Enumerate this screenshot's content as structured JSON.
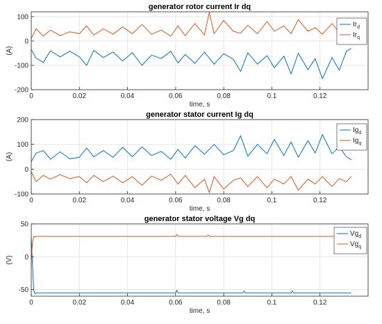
{
  "colors": {
    "d": "#0072BD",
    "q": "#D95319",
    "grid": "#e6e6e6",
    "axis": "#262626"
  },
  "chart_data": [
    {
      "type": "line",
      "title": "generator rotor current Ir dq",
      "xlabel": "time, s",
      "ylabel": "(A)",
      "xlim": [
        0,
        0.14
      ],
      "ylim": [
        -200,
        120
      ],
      "xticks": [
        0,
        0.02,
        0.04,
        0.06,
        0.08,
        0.1,
        0.12
      ],
      "xtick_labels": [
        "0",
        "0.02",
        "0.04",
        "0.06",
        "0.08",
        "0.1",
        "0.12"
      ],
      "yticks": [
        -200,
        -100,
        0,
        100
      ],
      "ytick_labels": [
        "-200",
        "-100",
        "0",
        "100"
      ],
      "grid": true,
      "legend_position": "top-right",
      "series": [
        {
          "name": "Ir",
          "sub": "d",
          "color_key": "d",
          "x": [
            0,
            0.002,
            0.005,
            0.008,
            0.012,
            0.016,
            0.02,
            0.023,
            0.026,
            0.03,
            0.034,
            0.038,
            0.042,
            0.046,
            0.05,
            0.054,
            0.058,
            0.061,
            0.064,
            0.068,
            0.072,
            0.076,
            0.08,
            0.084,
            0.087,
            0.09,
            0.094,
            0.098,
            0.101,
            0.105,
            0.108,
            0.111,
            0.115,
            0.118,
            0.121,
            0.125,
            0.128,
            0.131,
            0.133
          ],
          "y": [
            -35,
            -70,
            -88,
            -40,
            -65,
            -42,
            -65,
            -100,
            -38,
            -68,
            -45,
            -82,
            -48,
            -100,
            -58,
            -72,
            -42,
            -90,
            -55,
            -92,
            -45,
            -95,
            -52,
            -75,
            -125,
            -48,
            -95,
            -60,
            -110,
            -62,
            -135,
            -50,
            -118,
            -72,
            -155,
            -68,
            -120,
            -42,
            -30
          ]
        },
        {
          "name": "Ir",
          "sub": "q",
          "color_key": "q",
          "x": [
            0,
            0.002,
            0.005,
            0.008,
            0.012,
            0.016,
            0.02,
            0.023,
            0.026,
            0.03,
            0.034,
            0.038,
            0.042,
            0.046,
            0.05,
            0.054,
            0.058,
            0.061,
            0.064,
            0.068,
            0.072,
            0.074,
            0.076,
            0.08,
            0.084,
            0.087,
            0.09,
            0.094,
            0.098,
            0.101,
            0.105,
            0.108,
            0.111,
            0.115,
            0.118,
            0.121,
            0.125,
            0.128,
            0.131,
            0.133
          ],
          "y": [
            10,
            50,
            20,
            45,
            22,
            38,
            30,
            62,
            25,
            50,
            28,
            58,
            30,
            68,
            28,
            45,
            20,
            62,
            22,
            72,
            25,
            118,
            30,
            85,
            40,
            32,
            65,
            30,
            80,
            40,
            62,
            30,
            88,
            40,
            55,
            28,
            72,
            35,
            50,
            40
          ]
        }
      ]
    },
    {
      "type": "line",
      "title": "generator stator current Ig dq",
      "xlabel": "time, s",
      "ylabel": "(A)",
      "xlim": [
        0,
        0.14
      ],
      "ylim": [
        -100,
        200
      ],
      "xticks": [
        0,
        0.02,
        0.04,
        0.06,
        0.08,
        0.1,
        0.12
      ],
      "xtick_labels": [
        "0",
        "0.02",
        "0.04",
        "0.06",
        "0.08",
        "0.1",
        "0.12"
      ],
      "yticks": [
        -100,
        0,
        100,
        200
      ],
      "ytick_labels": [
        "-100",
        "0",
        "100",
        "200"
      ],
      "grid": true,
      "legend_position": "top-right",
      "series": [
        {
          "name": "Ig",
          "sub": "d",
          "color_key": "d",
          "x": [
            0,
            0.002,
            0.005,
            0.008,
            0.012,
            0.016,
            0.02,
            0.023,
            0.026,
            0.03,
            0.034,
            0.038,
            0.042,
            0.046,
            0.05,
            0.054,
            0.058,
            0.061,
            0.064,
            0.068,
            0.072,
            0.076,
            0.08,
            0.084,
            0.087,
            0.09,
            0.094,
            0.098,
            0.101,
            0.105,
            0.108,
            0.111,
            0.115,
            0.118,
            0.121,
            0.125,
            0.128,
            0.131,
            0.133
          ],
          "y": [
            30,
            65,
            75,
            40,
            70,
            42,
            48,
            85,
            50,
            75,
            48,
            88,
            50,
            90,
            55,
            72,
            40,
            80,
            45,
            95,
            60,
            100,
            58,
            75,
            135,
            52,
            100,
            62,
            120,
            55,
            110,
            48,
            115,
            65,
            140,
            62,
            90,
            50,
            38
          ]
        },
        {
          "name": "Ig",
          "sub": "q",
          "color_key": "q",
          "x": [
            0,
            0.002,
            0.005,
            0.008,
            0.012,
            0.016,
            0.02,
            0.023,
            0.026,
            0.03,
            0.034,
            0.038,
            0.042,
            0.046,
            0.05,
            0.054,
            0.058,
            0.061,
            0.064,
            0.068,
            0.072,
            0.074,
            0.076,
            0.08,
            0.084,
            0.087,
            0.09,
            0.094,
            0.098,
            0.101,
            0.105,
            0.108,
            0.111,
            0.115,
            0.118,
            0.121,
            0.125,
            0.128,
            0.131,
            0.133
          ],
          "y": [
            -10,
            -50,
            -25,
            -40,
            -22,
            -38,
            -30,
            -55,
            -25,
            -50,
            -28,
            -55,
            -30,
            -65,
            -28,
            -45,
            -20,
            -60,
            -25,
            -75,
            -40,
            -95,
            -30,
            -80,
            -45,
            -35,
            -70,
            -30,
            -75,
            -40,
            -60,
            -30,
            -85,
            -40,
            -60,
            -30,
            -70,
            -38,
            -50,
            -30
          ]
        }
      ]
    },
    {
      "type": "line",
      "title": "generator stator voltage Vg dq",
      "xlabel": "time, s",
      "ylabel": "(V)",
      "xlim": [
        0,
        0.14
      ],
      "ylim": [
        -60,
        50
      ],
      "xticks": [
        0,
        0.02,
        0.04,
        0.06,
        0.08,
        0.1,
        0.12
      ],
      "xtick_labels": [
        "0",
        "0.02",
        "0.04",
        "0.06",
        "0.08",
        "0.1",
        "0.12"
      ],
      "yticks": [
        -50,
        0,
        50
      ],
      "ytick_labels": [
        "-50",
        "0",
        "50"
      ],
      "grid": true,
      "legend_position": "top-right",
      "series": [
        {
          "name": "Vg",
          "sub": "d",
          "color_key": "d",
          "x": [
            0,
            0.0005,
            0.001,
            0.0015,
            0.002,
            0.01,
            0.02,
            0.03,
            0.04,
            0.05,
            0.06,
            0.0605,
            0.061,
            0.07,
            0.08,
            0.088,
            0.0885,
            0.089,
            0.1,
            0.108,
            0.1085,
            0.109,
            0.12,
            0.13,
            0.133
          ],
          "y": [
            30,
            -10,
            -50,
            -56,
            -55,
            -55,
            -55,
            -55,
            -55,
            -55,
            -55,
            -51,
            -55,
            -55,
            -55,
            -55,
            -52,
            -55,
            -55,
            -55,
            -52,
            -55,
            -55,
            -55,
            -55
          ]
        },
        {
          "name": "Vg",
          "sub": "q",
          "color_key": "q",
          "x": [
            0,
            0.0005,
            0.001,
            0.0015,
            0.002,
            0.01,
            0.02,
            0.03,
            0.04,
            0.05,
            0.06,
            0.0605,
            0.061,
            0.07,
            0.073,
            0.0735,
            0.074,
            0.08,
            0.09,
            0.1,
            0.11,
            0.12,
            0.13,
            0.133
          ],
          "y": [
            -5,
            20,
            31,
            30,
            31,
            31,
            31,
            31,
            31,
            31,
            31,
            34,
            31,
            31,
            31,
            33,
            31,
            31,
            31,
            31,
            31,
            31,
            31,
            31
          ]
        }
      ]
    }
  ]
}
